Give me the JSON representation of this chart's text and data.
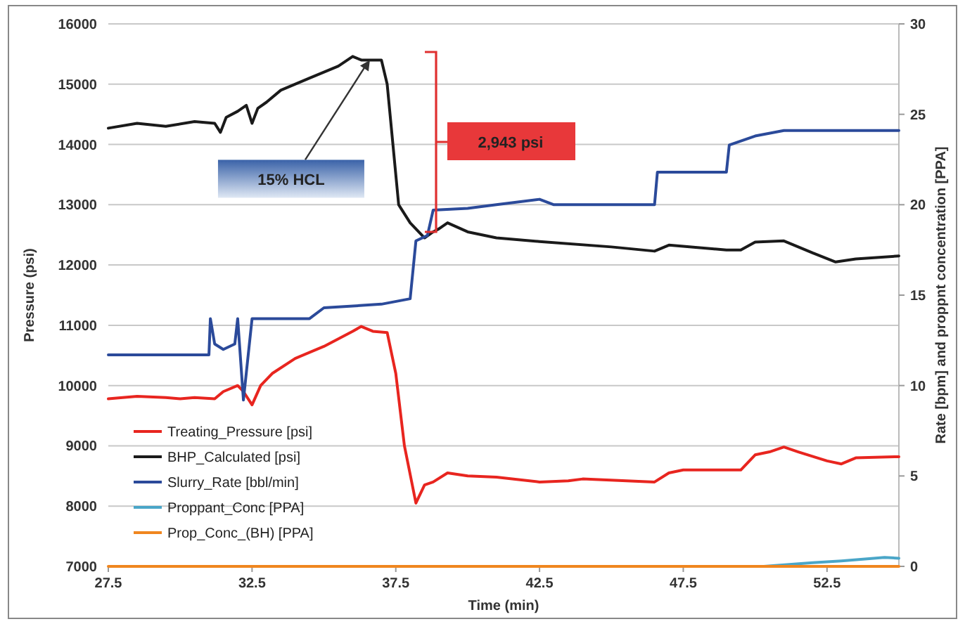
{
  "chart_data": {
    "type": "line",
    "xlabel": "Time (min)",
    "ylabel": "Pressure (psi)",
    "y2label": "Rate [bpm] and proppnt concentration [PPA]",
    "xlim": [
      27.5,
      55
    ],
    "xticks": [
      27.5,
      32.5,
      37.5,
      42.5,
      47.5,
      52.5
    ],
    "ylim": [
      7000,
      16000
    ],
    "yticks": [
      7000,
      8000,
      9000,
      10000,
      11000,
      12000,
      13000,
      14000,
      15000,
      16000
    ],
    "y2lim": [
      0,
      30
    ],
    "y2ticks": [
      0,
      5,
      10,
      15,
      20,
      25,
      30
    ],
    "grid": "y",
    "legend": "bottom left",
    "line_style": "solid",
    "annotations": [
      {
        "text": "15% HCL",
        "x": 36.6,
        "y": 15400
      },
      "2,943 psi"
    ],
    "series": [
      {
        "name": "Treating_Pressure [psi]",
        "color": "#e8251f",
        "x": [
          27.5,
          28.5,
          29.5,
          30,
          30.5,
          31.2,
          31.5,
          32,
          32.2,
          32.5,
          32.8,
          33.2,
          34,
          35,
          36,
          36.3,
          36.7,
          37.2,
          37.5,
          37.8,
          38.2,
          38.5,
          38.8,
          39.3,
          40,
          41,
          42.5,
          43.5,
          44,
          46.5,
          47,
          47.5,
          48,
          49.5,
          50,
          50.5,
          51,
          51.5,
          52.5,
          53,
          53.5,
          55
        ],
        "values": [
          9780,
          9820,
          9800,
          9780,
          9800,
          9780,
          9900,
          10000,
          9900,
          9680,
          10000,
          10200,
          10450,
          10650,
          10900,
          10980,
          10900,
          10880,
          10200,
          9000,
          8050,
          8350,
          8400,
          8550,
          8500,
          8480,
          8400,
          8420,
          8450,
          8400,
          8550,
          8600,
          8600,
          8600,
          8850,
          8900,
          8980,
          8900,
          8750,
          8700,
          8800,
          8820
        ]
      },
      {
        "name": "BHP_Calculated [psi]",
        "color": "#1a1a1a",
        "x": [
          27.5,
          28.5,
          29.5,
          30.5,
          31.2,
          31.4,
          31.6,
          32,
          32.3,
          32.5,
          32.7,
          33,
          33.5,
          34.5,
          35.5,
          36,
          36.3,
          37,
          37.2,
          37.4,
          37.6,
          38,
          38.5,
          38.8,
          39,
          39.3,
          40,
          41,
          42.5,
          45,
          46.5,
          47,
          49,
          49.5,
          50,
          51,
          52,
          52.8,
          53.5,
          55
        ],
        "values": [
          14270,
          14350,
          14300,
          14380,
          14350,
          14200,
          14450,
          14550,
          14650,
          14350,
          14600,
          14700,
          14900,
          15100,
          15300,
          15460,
          15400,
          15400,
          15000,
          14000,
          13000,
          12700,
          12450,
          12550,
          12600,
          12700,
          12550,
          12450,
          12390,
          12300,
          12230,
          12330,
          12250,
          12250,
          12380,
          12400,
          12200,
          12050,
          12100,
          12150
        ]
      },
      {
        "name": "Slurry_Rate [bbl/min]",
        "color": "#2b4a9a",
        "axis": "y2",
        "x": [
          27.5,
          31,
          31.05,
          31.2,
          31.5,
          31.9,
          32,
          32.2,
          32.5,
          34.5,
          35,
          37,
          38,
          38.2,
          38.6,
          38.8,
          40,
          41,
          42.5,
          43,
          46.5,
          46.6,
          49,
          49.1,
          50,
          51,
          55
        ],
        "values": [
          11.7,
          11.7,
          13.7,
          12.3,
          12,
          12.3,
          13.7,
          9.2,
          13.7,
          13.7,
          14.3,
          14.5,
          14.8,
          18,
          18.3,
          19.7,
          19.8,
          20,
          20.3,
          20,
          20,
          21.8,
          21.8,
          23.3,
          23.8,
          24.1,
          24.1
        ]
      },
      {
        "name": "Proppant_Conc [PPA]",
        "color": "#4aa6c8",
        "axis": "y2",
        "x": [
          50.3,
          52,
          53,
          54.5,
          55
        ],
        "values": [
          0,
          0.2,
          0.3,
          0.5,
          0.45
        ]
      },
      {
        "name": "Prop_Conc_(BH) [PPA]",
        "color": "#f0861f",
        "axis": "y2",
        "x": [
          27.5,
          55
        ],
        "values": [
          0,
          0
        ]
      }
    ]
  }
}
